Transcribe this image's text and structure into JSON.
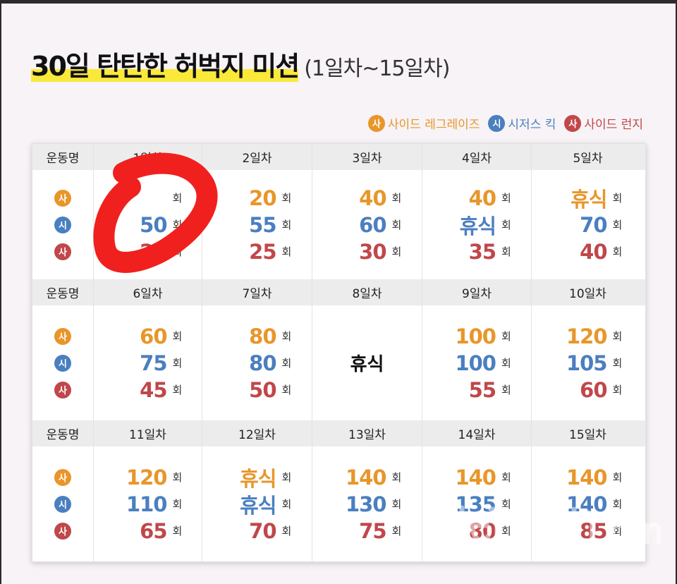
{
  "title": "30일 탄탄한 허벅지 미션",
  "subtitle": "(1일차~15일차)",
  "colors": {
    "orange": "#e8962a",
    "blue": "#4a7fc0",
    "red": "#c0474a",
    "highlight": "#fbe93a",
    "scribble": "#f0201e"
  },
  "legend": [
    {
      "badge": "사",
      "label": "사이드 레그레이즈",
      "color": "orange"
    },
    {
      "badge": "시",
      "label": "시저스 킥",
      "color": "blue"
    },
    {
      "badge": "사",
      "label": "사이드 런지",
      "color": "red"
    }
  ],
  "table": {
    "first_header": "운동명",
    "unit": "회",
    "rest_label": "휴식",
    "blocks": [
      {
        "days": [
          {
            "day": "1일차",
            "values": [
              "",
              "50",
              "20"
            ]
          },
          {
            "day": "2일차",
            "values": [
              "20",
              "55",
              "25"
            ]
          },
          {
            "day": "3일차",
            "values": [
              "40",
              "60",
              "30"
            ]
          },
          {
            "day": "4일차",
            "values": [
              "40",
              "휴식",
              "35"
            ]
          },
          {
            "day": "5일차",
            "values": [
              "휴식",
              "70",
              "40"
            ]
          }
        ]
      },
      {
        "days": [
          {
            "day": "6일차",
            "values": [
              "60",
              "75",
              "45"
            ]
          },
          {
            "day": "7일차",
            "values": [
              "80",
              "80",
              "50"
            ]
          },
          {
            "day": "8일차",
            "rest": true
          },
          {
            "day": "9일차",
            "values": [
              "100",
              "100",
              "55"
            ]
          },
          {
            "day": "10일차",
            "values": [
              "120",
              "105",
              "60"
            ]
          }
        ]
      },
      {
        "days": [
          {
            "day": "11일차",
            "values": [
              "120",
              "110",
              "65"
            ]
          },
          {
            "day": "12일차",
            "values": [
              "휴식",
              "휴식",
              "70"
            ]
          },
          {
            "day": "13일차",
            "values": [
              "140",
              "130",
              "75"
            ]
          },
          {
            "day": "14일차",
            "values": [
              "140",
              "135",
              "80"
            ]
          },
          {
            "day": "15일차",
            "values": [
              "140",
              "140",
              "85"
            ]
          }
        ]
      }
    ]
  },
  "watermark": "dietshin.com"
}
